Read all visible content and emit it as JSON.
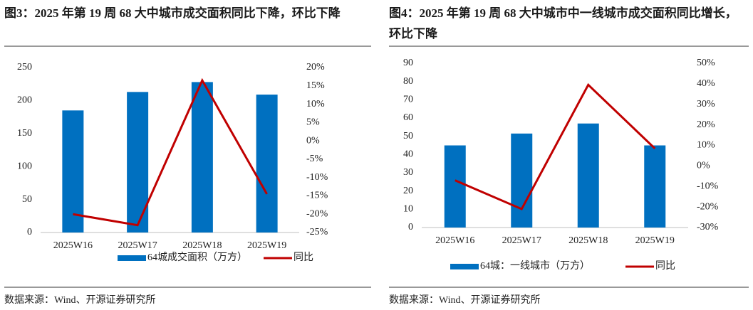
{
  "chart_data": [
    {
      "type": "bar-line",
      "title": "图3：2025 年第 19 周 68 大中城市成交面积同比下降，环比下降",
      "source": "数据来源：Wind、开源证券研究所",
      "categories": [
        "2025W16",
        "2025W17",
        "2025W18",
        "2025W19"
      ],
      "series": [
        {
          "name": "64城成交面积（万方）",
          "color": "#0070c0",
          "values": [
            185,
            213,
            228,
            209
          ]
        },
        {
          "name": "同比",
          "color": "#c00000",
          "axis": "y2",
          "values": [
            -20,
            -23,
            16.5,
            -14.5
          ]
        }
      ],
      "ylim": [
        0,
        250
      ],
      "yticks": [
        0,
        50,
        100,
        150,
        200,
        250
      ],
      "y2lim": [
        -25,
        20
      ],
      "y2ticks": [
        {
          "value": -25,
          "label": "-25%"
        },
        {
          "value": -20,
          "label": "-20%"
        },
        {
          "value": -15,
          "label": "-15%"
        },
        {
          "value": -10,
          "label": "-10%"
        },
        {
          "value": -5,
          "label": "-5%"
        },
        {
          "value": 0,
          "label": "0%"
        },
        {
          "value": 5,
          "label": "5%"
        },
        {
          "value": 10,
          "label": "10%"
        },
        {
          "value": 15,
          "label": "15%"
        },
        {
          "value": 20,
          "label": "20%"
        }
      ]
    },
    {
      "type": "bar-line",
      "title": "图4：2025 年第 19 周 68 大中城市中一线城市成交面积同比增长，环比下降",
      "source": "数据来源：Wind、开源证券研究所",
      "categories": [
        "2025W16",
        "2025W17",
        "2025W18",
        "2025W19"
      ],
      "series": [
        {
          "name": "64城：一线城市（万方）",
          "color": "#0070c0",
          "values": [
            45,
            51.5,
            57,
            45
          ]
        },
        {
          "name": "同比",
          "color": "#c00000",
          "axis": "y2",
          "values": [
            -7,
            -21,
            39.5,
            8.5
          ]
        }
      ],
      "ylim": [
        0,
        90
      ],
      "yticks": [
        0,
        10,
        20,
        30,
        40,
        50,
        60,
        70,
        80,
        90
      ],
      "y2lim": [
        -30,
        50
      ],
      "y2ticks": [
        {
          "value": -30,
          "label": "-30%"
        },
        {
          "value": -20,
          "label": "-20%"
        },
        {
          "value": -10,
          "label": "-10%"
        },
        {
          "value": 0,
          "label": "0%"
        },
        {
          "value": 10,
          "label": "10%"
        },
        {
          "value": 20,
          "label": "20%"
        },
        {
          "value": 30,
          "label": "30%"
        },
        {
          "value": 40,
          "label": "40%"
        },
        {
          "value": 50,
          "label": "50%"
        }
      ]
    }
  ]
}
